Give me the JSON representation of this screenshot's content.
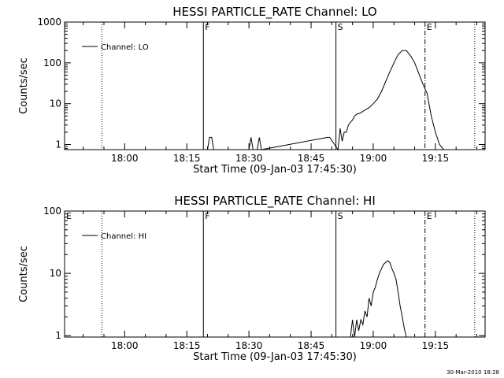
{
  "footer": {
    "stamp": "30-Mar-2010 18:28"
  },
  "chart_data": [
    {
      "type": "line",
      "title": "HESSI PARTICLE_RATE Channel: LO",
      "xlabel": "Start Time (09-Jan-03 17:45:30)",
      "ylabel": "Counts/sec",
      "yscale": "log",
      "xlim": [
        "17:45:30",
        "19:27:00"
      ],
      "ylim": [
        0.75,
        1000
      ],
      "x_ticks": [
        "18:00",
        "18:15",
        "18:30",
        "18:45",
        "19:00",
        "19:15"
      ],
      "y_ticks": [
        "1",
        "10",
        "100",
        "1000"
      ],
      "legend": {
        "label": "Channel: LO",
        "position": "top-left"
      },
      "markers": [
        {
          "label": "",
          "time": "17:54:30",
          "style": "dotted"
        },
        {
          "label": "F",
          "time": "18:19:00",
          "style": "solid"
        },
        {
          "label": "S",
          "time": "18:51:00",
          "style": "solid"
        },
        {
          "label": "E",
          "time": "19:12:30",
          "style": "dash-dot"
        },
        {
          "label": "",
          "time": "19:24:30",
          "style": "dotted"
        }
      ],
      "series": [
        {
          "name": "Channel: LO",
          "x": [
            "18:20:00",
            "18:20:30",
            "18:21:00",
            "18:21:30",
            "18:30:00",
            "18:30:30",
            "18:31:00",
            "18:32:00",
            "18:32:30",
            "18:33:00",
            "18:49:00",
            "18:49:30",
            "18:51:30",
            "18:52:00",
            "18:52:30",
            "18:53:00",
            "18:53:30",
            "18:54:00",
            "18:54:30",
            "18:55:00",
            "18:55:30",
            "18:56:00",
            "18:57:00",
            "18:58:00",
            "18:59:00",
            "19:00:00",
            "19:01:00",
            "19:02:00",
            "19:03:00",
            "19:04:00",
            "19:05:00",
            "19:06:00",
            "19:07:00",
            "19:08:00",
            "19:09:00",
            "19:10:00",
            "19:11:00",
            "19:12:00",
            "19:13:00",
            "19:14:00",
            "19:15:00",
            "19:16:00",
            "19:17:00"
          ],
          "y": [
            0.75,
            1.5,
            1.5,
            0.75,
            0.75,
            1.5,
            0.75,
            0.75,
            1.5,
            0.75,
            1.5,
            1.5,
            0.75,
            2.5,
            1.2,
            2,
            2,
            3,
            3.5,
            4,
            5,
            5.5,
            6,
            7,
            8,
            10,
            13,
            20,
            35,
            60,
            100,
            160,
            200,
            200,
            150,
            100,
            55,
            30,
            18,
            5,
            2,
            1,
            0.75
          ]
        }
      ]
    },
    {
      "type": "line",
      "title": "HESSI PARTICLE_RATE Channel: HI",
      "xlabel": "Start Time (09-Jan-03 17:45:30)",
      "ylabel": "Counts/sec",
      "yscale": "log",
      "xlim": [
        "17:45:30",
        "19:27:00"
      ],
      "ylim": [
        0.95,
        100
      ],
      "x_ticks": [
        "18:00",
        "18:15",
        "18:30",
        "18:45",
        "19:00",
        "19:15"
      ],
      "y_ticks": [
        "1",
        "10",
        "100"
      ],
      "legend": {
        "label": "Channel: HI",
        "position": "top-left"
      },
      "markers": [
        {
          "label": "E",
          "time": "17:45:30",
          "style": "solid"
        },
        {
          "label": "",
          "time": "17:54:30",
          "style": "dotted"
        },
        {
          "label": "F",
          "time": "18:19:00",
          "style": "solid"
        },
        {
          "label": "S",
          "time": "18:51:00",
          "style": "solid"
        },
        {
          "label": "E",
          "time": "19:12:30",
          "style": "dash-dot"
        },
        {
          "label": "",
          "time": "19:24:30",
          "style": "dotted"
        }
      ],
      "series": [
        {
          "name": "Channel: HI",
          "x": [
            "18:54:30",
            "18:55:00",
            "18:55:30",
            "18:56:00",
            "18:56:30",
            "18:57:00",
            "18:57:30",
            "18:58:00",
            "18:58:30",
            "18:59:00",
            "18:59:30",
            "19:00:00",
            "19:00:30",
            "19:01:00",
            "19:01:30",
            "19:02:00",
            "19:02:30",
            "19:03:00",
            "19:03:30",
            "19:04:00",
            "19:04:30",
            "19:05:00",
            "19:05:30",
            "19:06:00",
            "19:06:30",
            "19:07:00",
            "19:07:30",
            "19:08:00"
          ],
          "y": [
            0.95,
            1.8,
            0.95,
            1.8,
            1.2,
            1.8,
            1.5,
            2.5,
            2,
            4,
            3,
            5,
            6,
            8,
            10,
            12,
            14,
            15,
            16,
            15,
            12,
            10,
            8,
            5,
            3,
            2,
            1.3,
            0.95
          ]
        }
      ]
    }
  ]
}
